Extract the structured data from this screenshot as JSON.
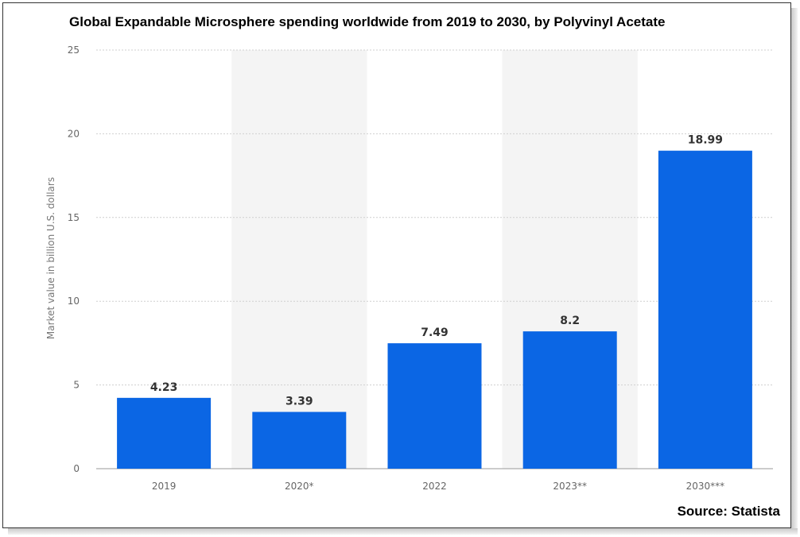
{
  "title": "Global Expandable Microsphere spending worldwide from 2019 to 2030, by Polyvinyl Acetate",
  "source": "Source: Statista",
  "colors": {
    "bar": "#0b66e4",
    "band": "#f4f4f4",
    "grid": "#cfcfcf"
  },
  "chart_data": {
    "type": "bar",
    "categories": [
      "2019",
      "2020*",
      "2022",
      "2023**",
      "2030***"
    ],
    "values": [
      4.23,
      3.39,
      7.49,
      8.2,
      18.99
    ],
    "data_labels": [
      "4.23",
      "3.39",
      "7.49",
      "8.2",
      "18.99"
    ],
    "title": "Global Expandable Microsphere spending worldwide from 2019 to 2030, by Polyvinyl Acetate",
    "xlabel": "",
    "ylabel": "Market value in billion U.S. dollars",
    "ylim": [
      0,
      25
    ],
    "yticks": [
      0,
      5,
      10,
      15,
      20,
      25
    ],
    "grid": true,
    "legend": "none"
  }
}
